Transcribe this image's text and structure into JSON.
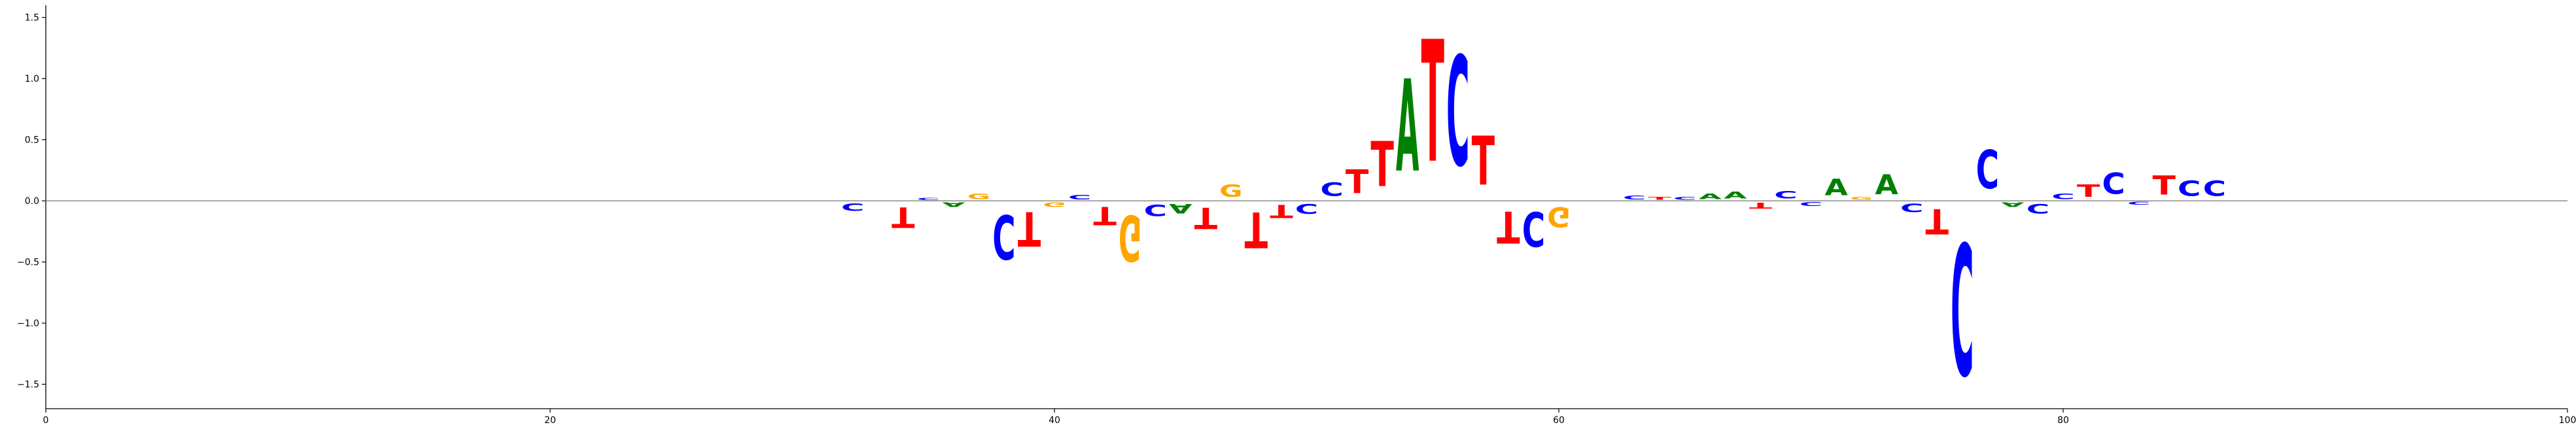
{
  "chart_data": {
    "type": "sequence-logo",
    "title": "",
    "xlabel": "",
    "ylabel": "",
    "xlim": [
      0,
      100
    ],
    "ylim": [
      -1.7,
      1.6
    ],
    "xticks": [
      0,
      20,
      40,
      60,
      80,
      100
    ],
    "xtick_labels": [
      "0",
      "20",
      "40",
      "60",
      "80",
      "100"
    ],
    "yticks": [
      -1.5,
      -1.0,
      -0.5,
      0.0,
      0.5,
      1.0,
      1.5
    ],
    "ytick_labels": [
      "−1.5",
      "−1.0",
      "−0.5",
      "0.0",
      "0.5",
      "1.0",
      "1.5"
    ],
    "baseline": 0,
    "colors": {
      "A": "#008000",
      "C": "#0000ff",
      "G": "#ffa500",
      "T": "#ff0000"
    },
    "positions": [
      {
        "x": 32,
        "stack": [
          {
            "base": "C",
            "height": -0.1
          }
        ]
      },
      {
        "x": 34,
        "stack": [
          {
            "base": "T",
            "height": -0.27
          }
        ]
      },
      {
        "x": 35,
        "stack": [
          {
            "base": "C",
            "height": 0.03
          }
        ]
      },
      {
        "x": 36,
        "stack": [
          {
            "base": "A",
            "height": -0.06
          }
        ]
      },
      {
        "x": 37,
        "stack": [
          {
            "base": "G",
            "height": 0.07
          }
        ]
      },
      {
        "x": 38,
        "stack": [
          {
            "base": "C",
            "height": -0.58
          }
        ]
      },
      {
        "x": 39,
        "stack": [
          {
            "base": "T",
            "height": -0.45
          }
        ]
      },
      {
        "x": 40,
        "stack": [
          {
            "base": "G",
            "height": -0.06
          }
        ]
      },
      {
        "x": 41,
        "stack": [
          {
            "base": "C",
            "height": 0.06
          }
        ]
      },
      {
        "x": 42,
        "stack": [
          {
            "base": "T",
            "height": -0.24
          }
        ]
      },
      {
        "x": 43,
        "stack": [
          {
            "base": "G",
            "height": -0.6
          }
        ]
      },
      {
        "x": 44,
        "stack": [
          {
            "base": "C",
            "height": -0.15
          }
        ]
      },
      {
        "x": 45,
        "stack": [
          {
            "base": "A",
            "height": -0.12
          }
        ]
      },
      {
        "x": 46,
        "stack": [
          {
            "base": "T",
            "height": -0.28
          }
        ]
      },
      {
        "x": 47,
        "stack": [
          {
            "base": "G",
            "height": 0.16
          }
        ]
      },
      {
        "x": 48,
        "stack": [
          {
            "base": "T",
            "height": -0.47
          }
        ]
      },
      {
        "x": 49,
        "stack": [
          {
            "base": "T",
            "height": -0.17
          }
        ]
      },
      {
        "x": 50,
        "stack": [
          {
            "base": "C",
            "height": -0.13
          }
        ]
      },
      {
        "x": 51,
        "stack": [
          {
            "base": "C",
            "height": 0.18
          }
        ]
      },
      {
        "x": 52,
        "stack": [
          {
            "base": "T",
            "height": 0.31
          }
        ]
      },
      {
        "x": 53,
        "stack": [
          {
            "base": "T",
            "height": 0.59
          }
        ]
      },
      {
        "x": 54,
        "stack": [
          {
            "base": "A",
            "height": 1.21
          }
        ]
      },
      {
        "x": 55,
        "stack": [
          {
            "base": "T",
            "height": 1.6
          }
        ]
      },
      {
        "x": 56,
        "stack": [
          {
            "base": "C",
            "height": 1.44
          }
        ]
      },
      {
        "x": 57,
        "stack": [
          {
            "base": "T",
            "height": 0.64
          }
        ]
      },
      {
        "x": 58,
        "stack": [
          {
            "base": "T",
            "height": -0.42
          }
        ]
      },
      {
        "x": 59,
        "stack": [
          {
            "base": "C",
            "height": -0.45
          }
        ]
      },
      {
        "x": 60,
        "stack": [
          {
            "base": "G",
            "height": -0.26
          }
        ]
      },
      {
        "x": 63,
        "stack": [
          {
            "base": "C",
            "height": 0.05
          }
        ]
      },
      {
        "x": 64,
        "stack": [
          {
            "base": "T",
            "height": 0.04
          }
        ]
      },
      {
        "x": 65,
        "stack": [
          {
            "base": "C",
            "height": 0.04
          }
        ]
      },
      {
        "x": 66,
        "stack": [
          {
            "base": "A",
            "height": 0.07
          }
        ]
      },
      {
        "x": 67,
        "stack": [
          {
            "base": "A",
            "height": 0.09
          }
        ]
      },
      {
        "x": 68,
        "stack": [
          {
            "base": "T",
            "height": -0.08
          }
        ]
      },
      {
        "x": 69,
        "stack": [
          {
            "base": "C",
            "height": 0.1
          }
        ]
      },
      {
        "x": 70,
        "stack": [
          {
            "base": "C",
            "height": -0.05
          }
        ]
      },
      {
        "x": 71,
        "stack": [
          {
            "base": "A",
            "height": 0.22
          }
        ]
      },
      {
        "x": 72,
        "stack": [
          {
            "base": "G",
            "height": 0.04
          }
        ]
      },
      {
        "x": 73,
        "stack": [
          {
            "base": "A",
            "height": 0.26
          }
        ]
      },
      {
        "x": 74,
        "stack": [
          {
            "base": "C",
            "height": -0.11
          }
        ]
      },
      {
        "x": 75,
        "stack": [
          {
            "base": "T",
            "height": -0.33
          }
        ]
      },
      {
        "x": 76,
        "stack": [
          {
            "base": "C",
            "height": -1.72
          }
        ]
      },
      {
        "x": 77,
        "stack": [
          {
            "base": "C",
            "height": 0.5
          }
        ]
      },
      {
        "x": 78,
        "stack": [
          {
            "base": "A",
            "height": -0.06
          }
        ]
      },
      {
        "x": 79,
        "stack": [
          {
            "base": "C",
            "height": -0.12
          }
        ]
      },
      {
        "x": 80,
        "stack": [
          {
            "base": "C",
            "height": 0.07
          }
        ]
      },
      {
        "x": 81,
        "stack": [
          {
            "base": "T",
            "height": 0.16
          }
        ]
      },
      {
        "x": 82,
        "stack": [
          {
            "base": "C",
            "height": 0.28
          }
        ]
      },
      {
        "x": 83,
        "stack": [
          {
            "base": "C",
            "height": -0.04
          }
        ]
      },
      {
        "x": 84,
        "stack": [
          {
            "base": "T",
            "height": 0.25
          }
        ]
      },
      {
        "x": 85,
        "stack": [
          {
            "base": "C",
            "height": 0.2
          }
        ]
      },
      {
        "x": 86,
        "stack": [
          {
            "base": "C",
            "height": 0.2
          }
        ]
      }
    ]
  }
}
